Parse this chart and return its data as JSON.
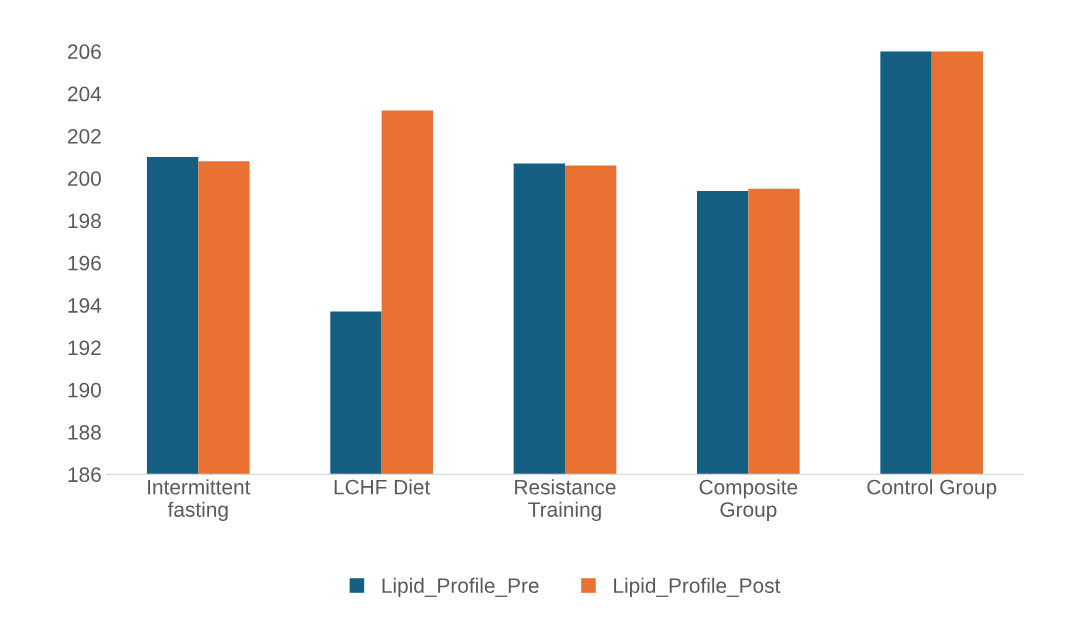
{
  "chart_data": {
    "type": "bar",
    "categories": [
      "Intermittent\nfasting",
      "LCHF Diet",
      "Resistance\nTraining",
      "Composite\nGroup",
      "Control Group"
    ],
    "series": [
      {
        "name": "Lipid_Profile_Pre",
        "color": "#156082",
        "values": [
          201.0,
          193.7,
          200.7,
          199.4,
          206.0
        ]
      },
      {
        "name": "Lipid_Profile_Post",
        "color": "#e97132",
        "values": [
          200.8,
          203.2,
          200.6,
          199.5,
          206.0
        ]
      }
    ],
    "ylim": [
      186,
      206
    ],
    "yticks": [
      186,
      188,
      190,
      192,
      194,
      196,
      198,
      200,
      202,
      204,
      206
    ],
    "grid": false,
    "legend": "bottom"
  }
}
